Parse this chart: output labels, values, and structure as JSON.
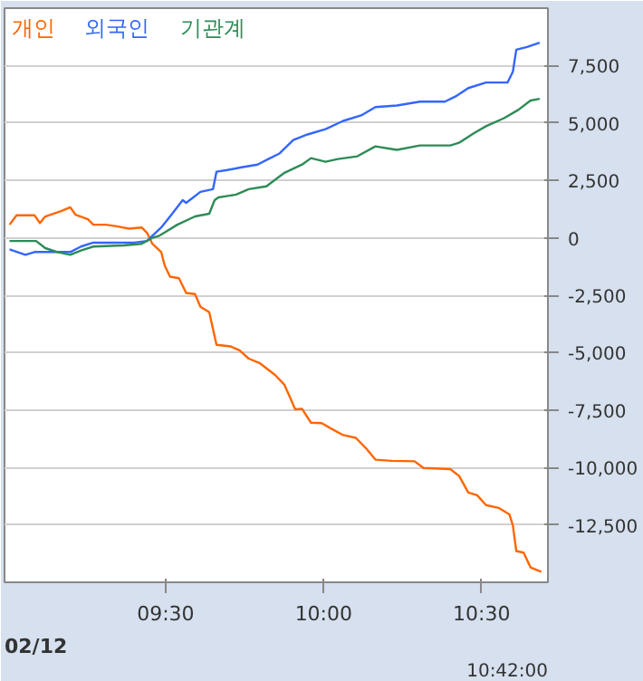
{
  "chart_data": {
    "type": "line",
    "xlim": [
      8.99,
      10.71
    ],
    "xticks": [
      {
        "value": 9.5,
        "label": "09:30"
      },
      {
        "value": 10,
        "label": "10:00"
      },
      {
        "value": 10.5,
        "label": "10:30"
      }
    ],
    "ylim": [
      -15000,
      10000
    ],
    "yticks": [
      {
        "value": 7500,
        "label": "7,500"
      },
      {
        "value": 5000,
        "label": "5,000"
      },
      {
        "value": 2500,
        "label": "2,500"
      },
      {
        "value": 0,
        "label": "0"
      },
      {
        "value": -2500,
        "label": "-2,500"
      },
      {
        "value": -5000,
        "label": "-5,000"
      },
      {
        "value": -7500,
        "label": "-7,500"
      },
      {
        "value": -10000,
        "label": "-10,000"
      },
      {
        "value": -12500,
        "label": "-12,500"
      }
    ],
    "grid": "y",
    "annotations": [
      "02/12",
      "10:42:00"
    ],
    "series": [
      {
        "name": "개인",
        "color": "#ff6600",
        "x": [
          9.006,
          9.028,
          9.085,
          9.102,
          9.119,
          9.169,
          9.198,
          9.215,
          9.254,
          9.271,
          9.311,
          9.345,
          9.384,
          9.424,
          9.441,
          9.458,
          9.486,
          9.497,
          9.514,
          9.542,
          9.565,
          9.593,
          9.61,
          9.638,
          9.661,
          9.706,
          9.734,
          9.763,
          9.797,
          9.847,
          9.876,
          9.893,
          9.91,
          9.932,
          9.96,
          9.994,
          10.023,
          10.062,
          10.102,
          10.136,
          10.164,
          10.215,
          10.288,
          10.316,
          10.401,
          10.429,
          10.458,
          10.486,
          10.514,
          10.554,
          10.588,
          10.599,
          10.61,
          10.633,
          10.655,
          10.689
        ],
        "values": [
          570,
          980,
          980,
          640,
          930,
          1160,
          1330,
          1000,
          810,
          570,
          570,
          500,
          400,
          450,
          220,
          -260,
          -620,
          -1210,
          -1690,
          -1760,
          -2400,
          -2450,
          -3000,
          -3240,
          -4660,
          -4730,
          -4900,
          -5260,
          -5450,
          -5980,
          -6400,
          -6930,
          -7470,
          -7450,
          -8050,
          -8070,
          -8300,
          -8590,
          -8710,
          -9190,
          -9660,
          -9710,
          -9730,
          -10020,
          -10070,
          -10370,
          -11090,
          -11210,
          -11640,
          -11760,
          -12040,
          -12520,
          -13640,
          -13710,
          -14350,
          -14540
        ]
      },
      {
        "name": "외국인",
        "color": "#3366ff",
        "x": [
          9.006,
          9.056,
          9.085,
          9.119,
          9.198,
          9.232,
          9.271,
          9.328,
          9.401,
          9.441,
          9.458,
          9.486,
          9.514,
          9.554,
          9.565,
          9.61,
          9.65,
          9.661,
          9.695,
          9.74,
          9.791,
          9.825,
          9.859,
          9.904,
          9.949,
          10.006,
          10.062,
          10.119,
          10.164,
          10.232,
          10.305,
          10.384,
          10.418,
          10.458,
          10.514,
          10.582,
          10.599,
          10.61,
          10.644,
          10.684
        ],
        "values": [
          -500,
          -740,
          -620,
          -620,
          -620,
          -380,
          -210,
          -210,
          -210,
          -140,
          90,
          450,
          930,
          1640,
          1520,
          2000,
          2120,
          2880,
          2950,
          3070,
          3190,
          3430,
          3660,
          4260,
          4500,
          4730,
          5090,
          5330,
          5690,
          5760,
          5930,
          5930,
          6160,
          6520,
          6760,
          6760,
          7230,
          8190,
          8310,
          8500
        ]
      },
      {
        "name": "기관계",
        "color": "#2e8b57",
        "x": [
          9.006,
          9.09,
          9.119,
          9.158,
          9.198,
          9.232,
          9.271,
          9.367,
          9.424,
          9.458,
          9.48,
          9.537,
          9.593,
          9.638,
          9.655,
          9.667,
          9.723,
          9.763,
          9.819,
          9.876,
          9.932,
          9.96,
          10.006,
          10.045,
          10.107,
          10.164,
          10.232,
          10.305,
          10.401,
          10.429,
          10.475,
          10.514,
          10.571,
          10.616,
          10.655,
          10.684
        ],
        "values": [
          -140,
          -140,
          -450,
          -620,
          -740,
          -550,
          -380,
          -330,
          -260,
          0,
          90,
          570,
          930,
          1050,
          1640,
          1760,
          1880,
          2120,
          2240,
          2830,
          3190,
          3470,
          3310,
          3430,
          3550,
          3980,
          3830,
          4020,
          4020,
          4140,
          4550,
          4860,
          5210,
          5570,
          5980,
          6050
        ]
      }
    ]
  }
}
